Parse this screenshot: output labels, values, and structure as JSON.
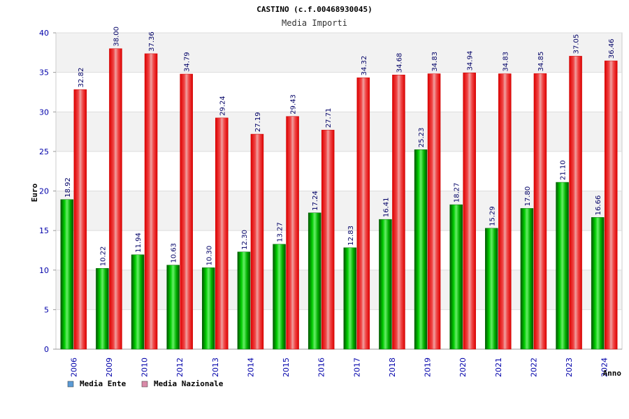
{
  "chart_data": {
    "type": "bar",
    "title": "CASTINO (c.f.00468930045)",
    "subtitle": "Media Importi",
    "xlabel": "Anno",
    "ylabel": "Euro",
    "ylim": [
      0,
      40
    ],
    "yticks": [
      "0",
      "5",
      "10",
      "15",
      "20",
      "25",
      "30",
      "35",
      "40"
    ],
    "grid": true,
    "legend_position": "bottom-left",
    "categories": [
      "2006",
      "2009",
      "2010",
      "2012",
      "2013",
      "2014",
      "2015",
      "2016",
      "2017",
      "2018",
      "2019",
      "2020",
      "2021",
      "2022",
      "2023",
      "2024"
    ],
    "series": [
      {
        "name": "Media Ente",
        "color": "#00aa00",
        "values": [
          18.92,
          10.22,
          11.94,
          10.63,
          10.3,
          12.3,
          13.27,
          17.24,
          12.83,
          16.41,
          25.23,
          18.27,
          15.29,
          17.8,
          21.1,
          16.66
        ],
        "labels": [
          "18.92",
          "10.22",
          "11.94",
          "10.63",
          "10.30",
          "12.30",
          "13.27",
          "17.24",
          "12.83",
          "16.41",
          "25.23",
          "18.27",
          "15.29",
          "17.80",
          "21.10",
          "16.66"
        ]
      },
      {
        "name": "Media Nazionale",
        "color": "#ee0000",
        "values": [
          32.82,
          38.0,
          37.36,
          34.79,
          29.24,
          27.19,
          29.43,
          27.71,
          34.32,
          34.68,
          34.83,
          34.94,
          34.83,
          34.85,
          37.05,
          36.46
        ],
        "labels": [
          "32.82",
          "38.00",
          "37.36",
          "34.79",
          "29.24",
          "27.19",
          "29.43",
          "27.71",
          "34.32",
          "34.68",
          "34.83",
          "34.94",
          "34.83",
          "34.85",
          "37.05",
          "36.46"
        ]
      }
    ],
    "legend": [
      {
        "label": "Media Ente",
        "color": "#5b9bd5"
      },
      {
        "label": "Media Nazionale",
        "color": "#d98aa8"
      }
    ]
  }
}
